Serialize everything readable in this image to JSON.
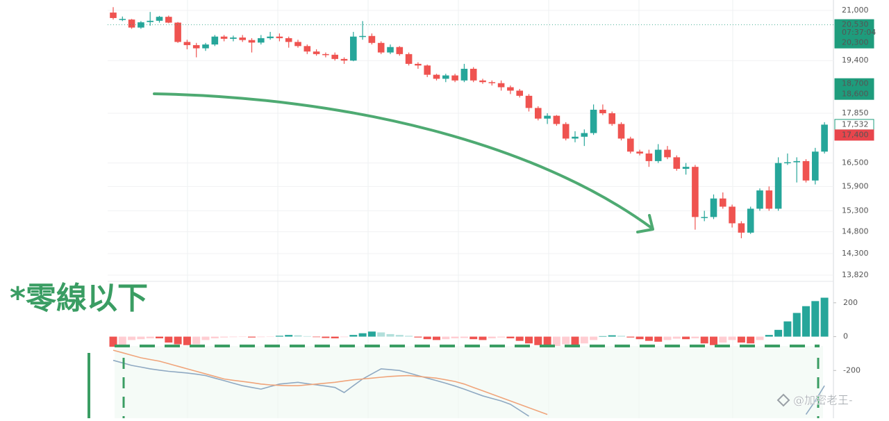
{
  "watermark": "@加密老王-",
  "chart_data": [
    {
      "type": "candlestick",
      "log_scale": true,
      "grid": true,
      "up_color": "#26a69a",
      "down_color": "#ef5350",
      "ylim": [
        13760,
        21350
      ],
      "yticks": [
        {
          "value": 21000,
          "label": "21,000"
        },
        {
          "value": 19400,
          "label": "19,400"
        },
        {
          "value": 17850,
          "label": "17,850"
        },
        {
          "value": 16500,
          "label": "16,500"
        },
        {
          "value": 15900,
          "label": "15,900"
        },
        {
          "value": 15300,
          "label": "15,300"
        },
        {
          "value": 14800,
          "label": "14,800"
        },
        {
          "value": 14300,
          "label": "14,300"
        },
        {
          "value": 13820,
          "label": "13,820"
        }
      ],
      "price_tags": [
        {
          "value": 20530,
          "label": "20,530",
          "time": "07:37:04",
          "color": "#1e9c7c"
        },
        {
          "value": 20300,
          "label": "20,300",
          "color": "#1e9c7c"
        },
        {
          "value": 18700,
          "label": "18,700",
          "color": "#1e9c7c"
        },
        {
          "value": 18600,
          "label": "18,600",
          "color": "#1e9c7c"
        },
        {
          "value": 17532,
          "label": "17,532",
          "color": "#1e9c7c",
          "outline": true
        },
        {
          "value": 17400,
          "label": "17,400",
          "color": "#e8454c"
        }
      ],
      "open": [
        20930,
        20700,
        20700,
        20440,
        20620,
        20660,
        20790,
        20600,
        19980,
        19880,
        19780,
        19900,
        20150,
        20080,
        20120,
        20040,
        19960,
        20100,
        20150,
        20100,
        19980,
        19850,
        19680,
        19600,
        19580,
        19450,
        19400,
        20150,
        20170,
        19950,
        19650,
        19820,
        19600,
        19300,
        19250,
        18970,
        18850,
        18950,
        18800,
        19150,
        18800,
        18750,
        18720,
        18600,
        18500,
        18350,
        18000,
        17700,
        17780,
        17550,
        17150,
        17200,
        17300,
        17950,
        17850,
        17550,
        17150,
        16800,
        16750,
        16550,
        16850,
        16650,
        16350,
        16400,
        15150,
        15150,
        15600,
        15400,
        15000,
        14780,
        15350,
        15800,
        15350,
        16500,
        16520,
        16550,
        16050,
        16800
      ],
      "high": [
        21110,
        20800,
        20720,
        20650,
        20950,
        20820,
        20830,
        20620,
        20050,
        19950,
        19950,
        20200,
        20200,
        20180,
        20200,
        20100,
        20200,
        20300,
        20250,
        20150,
        20050,
        19900,
        19750,
        19650,
        19650,
        19500,
        20300,
        20650,
        20250,
        20000,
        19900,
        19850,
        19650,
        19350,
        19280,
        19000,
        19000,
        19000,
        19300,
        19200,
        18850,
        18800,
        18800,
        18650,
        18550,
        18400,
        18050,
        17850,
        17800,
        17600,
        17350,
        17400,
        18100,
        18100,
        17900,
        17600,
        17200,
        16850,
        16850,
        17000,
        16950,
        16700,
        16500,
        16450,
        15300,
        15700,
        15750,
        15450,
        15050,
        15400,
        15850,
        15900,
        16650,
        16750,
        16650,
        16600,
        16900,
        17600
      ],
      "low": [
        20700,
        20650,
        20400,
        20400,
        20500,
        20600,
        20580,
        19950,
        19750,
        19500,
        19700,
        19850,
        20000,
        20000,
        19980,
        19650,
        19900,
        20050,
        20000,
        19800,
        19800,
        19600,
        19550,
        19500,
        19400,
        19300,
        19380,
        20050,
        19900,
        19600,
        19600,
        19550,
        19250,
        19150,
        18900,
        18800,
        18750,
        18750,
        18750,
        18750,
        18700,
        18650,
        18500,
        18400,
        18300,
        17900,
        17650,
        17550,
        17500,
        17100,
        17050,
        16950,
        17250,
        17800,
        17500,
        17100,
        16750,
        16700,
        16400,
        16500,
        16600,
        16300,
        16200,
        14850,
        15050,
        15100,
        15350,
        14900,
        14650,
        14750,
        15300,
        15300,
        15300,
        16450,
        16000,
        16000,
        15950,
        16750
      ],
      "close": [
        20750,
        20720,
        20440,
        20610,
        20660,
        20790,
        20600,
        19980,
        19880,
        19780,
        19900,
        20150,
        20080,
        20120,
        20040,
        19960,
        20100,
        20150,
        20100,
        19980,
        19850,
        19680,
        19600,
        19580,
        19450,
        19400,
        20150,
        20170,
        19950,
        19650,
        19820,
        19600,
        19300,
        19250,
        18970,
        18850,
        18950,
        18800,
        19150,
        18800,
        18750,
        18720,
        18600,
        18500,
        18350,
        18000,
        17700,
        17780,
        17550,
        17150,
        17200,
        17300,
        17950,
        17850,
        17550,
        17150,
        16800,
        16750,
        16550,
        16850,
        16650,
        16350,
        16400,
        15150,
        15150,
        15600,
        15400,
        15000,
        14780,
        15350,
        15800,
        15350,
        16500,
        16520,
        16550,
        16050,
        16800,
        17532
      ]
    },
    {
      "type": "macd",
      "annotation": "*零線以下",
      "ylim": [
        -482,
        306
      ],
      "yticks": [
        200,
        0,
        -200
      ],
      "palette": [
        "#26a69a",
        "#b2dfdb",
        "#ef5350",
        "#ffcdd2"
      ],
      "histogram": [
        -60,
        -55,
        -20,
        -15,
        -10,
        -10,
        -35,
        -45,
        -50,
        -45,
        -20,
        -10,
        -5,
        -3,
        -2,
        -5,
        -3,
        -2,
        5,
        10,
        8,
        3,
        -3,
        -8,
        -10,
        -3,
        10,
        20,
        30,
        25,
        15,
        10,
        5,
        -5,
        -15,
        -20,
        -15,
        -10,
        -8,
        -15,
        -20,
        -10,
        -5,
        -10,
        -25,
        -40,
        -50,
        -60,
        -55,
        -45,
        -60,
        -40,
        -20,
        3,
        8,
        5,
        -5,
        -15,
        -25,
        -30,
        -20,
        -12,
        -15,
        -10,
        -40,
        -50,
        -35,
        -20,
        -35,
        -40,
        -20,
        10,
        40,
        90,
        140,
        180,
        210,
        230
      ],
      "series": [
        {
          "color": "#8fa9c2",
          "values": [
            -140,
            -155,
            -170,
            -180,
            -190,
            -198,
            -205,
            -210,
            -215,
            -222,
            -230,
            -245,
            -260,
            -275,
            -290,
            -300,
            -310,
            -295,
            -280,
            -275,
            -270,
            -278,
            -285,
            -292,
            -300,
            -330,
            -290,
            -250,
            -220,
            -190,
            -195,
            -200,
            -215,
            -230,
            -245,
            -260,
            -275,
            -292,
            -310,
            -330,
            -350,
            -365,
            -380,
            -400,
            -435,
            -470,
            null,
            null,
            null,
            null,
            null,
            null,
            null,
            null,
            null,
            null,
            null,
            null,
            null,
            null,
            null,
            null,
            null,
            null,
            null,
            null,
            null,
            null,
            null,
            null,
            null,
            null,
            null,
            null,
            null,
            -460,
            -380,
            -290
          ]
        },
        {
          "color": "#f0a47a",
          "values": [
            -80,
            -95,
            -110,
            -125,
            -135,
            -145,
            -160,
            -175,
            -190,
            -205,
            -220,
            -235,
            -250,
            -258,
            -265,
            -272,
            -280,
            -285,
            -288,
            -290,
            -290,
            -285,
            -280,
            -275,
            -270,
            -262,
            -255,
            -250,
            -245,
            -240,
            -235,
            -232,
            -230,
            -235,
            -240,
            -245,
            -255,
            -265,
            -280,
            -300,
            -320,
            -340,
            -360,
            -380,
            -400,
            -420,
            -440,
            -460,
            null,
            null,
            null,
            null,
            null,
            null,
            null,
            null,
            null,
            null,
            null,
            null,
            null,
            null,
            null,
            null,
            null,
            null,
            null,
            null,
            null,
            null,
            null,
            null,
            null,
            null,
            null,
            null,
            null,
            null
          ]
        }
      ]
    }
  ]
}
